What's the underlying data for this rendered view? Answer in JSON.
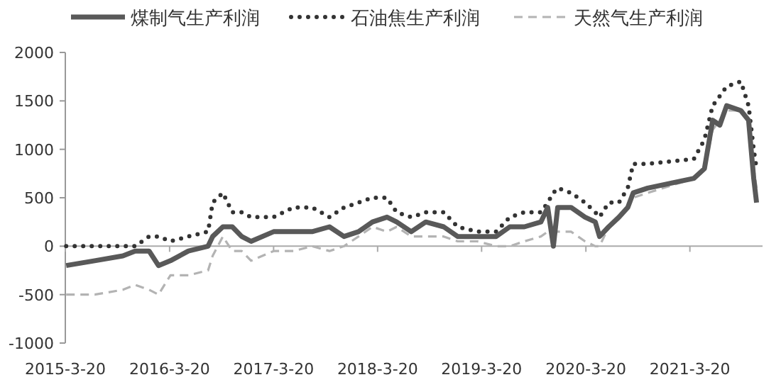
{
  "chart_data": {
    "type": "line",
    "legend": "top",
    "xlim": [
      "2015-03-20",
      "2021-11-30"
    ],
    "ylim": [
      -1000,
      2000
    ],
    "xticks": [
      {
        "value": "2015-03-20",
        "label": "2015-3-20"
      },
      {
        "value": "2016-03-20",
        "label": "2016-3-20"
      },
      {
        "value": "2017-03-20",
        "label": "2017-3-20"
      },
      {
        "value": "2018-03-20",
        "label": "2018-3-20"
      },
      {
        "value": "2019-03-20",
        "label": "2019-3-20"
      },
      {
        "value": "2020-03-20",
        "label": "2020-3-20"
      },
      {
        "value": "2021-03-20",
        "label": "2021-3-20"
      }
    ],
    "yticks": [
      -1000,
      -500,
      0,
      500,
      1000,
      1500,
      2000
    ],
    "x": [
      "2015-03-23",
      "2015-07-01",
      "2015-10-08",
      "2015-11-20",
      "2016-01-08",
      "2016-02-10",
      "2016-03-23",
      "2016-05-25",
      "2016-08-02",
      "2016-08-18",
      "2016-09-23",
      "2016-10-26",
      "2016-11-28",
      "2016-12-31",
      "2017-03-20",
      "2017-05-29",
      "2017-08-02",
      "2017-10-02",
      "2017-11-22",
      "2018-01-12",
      "2018-03-02",
      "2018-04-22",
      "2018-05-26",
      "2018-07-16",
      "2018-09-05",
      "2018-11-07",
      "2018-12-26",
      "2019-03-05",
      "2019-05-10",
      "2019-06-27",
      "2019-08-17",
      "2019-10-14",
      "2019-11-07",
      "2019-11-27",
      "2019-12-12",
      "2020-01-28",
      "2020-03-17",
      "2020-04-22",
      "2020-05-07",
      "2020-06-08",
      "2020-07-14",
      "2020-08-14",
      "2020-09-02",
      "2020-10-23",
      "2021-04-03",
      "2021-05-10",
      "2021-06-08",
      "2021-07-03",
      "2021-07-27",
      "2021-09-15",
      "2021-10-12",
      "2021-10-30",
      "2021-11-09"
    ],
    "series": [
      {
        "name": "煤制气生产利润",
        "color": "#595959",
        "line_style": "solid",
        "values": [
          -200,
          -150,
          -100,
          -50,
          -50,
          -200,
          -150,
          -50,
          0,
          100,
          200,
          200,
          100,
          50,
          150,
          150,
          150,
          200,
          100,
          150,
          250,
          300,
          250,
          150,
          250,
          200,
          100,
          100,
          100,
          200,
          200,
          250,
          400,
          0,
          400,
          400,
          300,
          250,
          100,
          200,
          300,
          400,
          550,
          600,
          700,
          800,
          1300,
          1250,
          1450,
          1400,
          1300,
          700,
          450
        ]
      },
      {
        "name": "石油焦生产利润",
        "color": "#333333",
        "line_style": "dotted",
        "values": [
          0,
          0,
          0,
          0,
          100,
          100,
          50,
          100,
          150,
          450,
          550,
          350,
          350,
          300,
          300,
          400,
          400,
          300,
          400,
          450,
          500,
          500,
          350,
          300,
          350,
          350,
          200,
          150,
          150,
          300,
          350,
          350,
          450,
          550,
          600,
          550,
          450,
          350,
          300,
          450,
          450,
          600,
          850,
          850,
          900,
          1100,
          1450,
          1550,
          1650,
          1700,
          1450,
          1000,
          800
        ]
      },
      {
        "name": "天然气生产利润",
        "color": "#b3b3b3",
        "line_style": "dashed",
        "values": [
          -500,
          -500,
          -450,
          -400,
          -450,
          -500,
          -300,
          -300,
          -250,
          -100,
          100,
          -50,
          -50,
          -150,
          -50,
          -50,
          0,
          -50,
          0,
          100,
          200,
          150,
          200,
          100,
          100,
          100,
          50,
          50,
          0,
          0,
          50,
          100,
          150,
          150,
          150,
          150,
          50,
          0,
          0,
          200,
          300,
          400,
          500,
          550,
          700,
          800,
          1200,
          1300,
          1400,
          1400,
          1300,
          800,
          600
        ]
      }
    ]
  }
}
